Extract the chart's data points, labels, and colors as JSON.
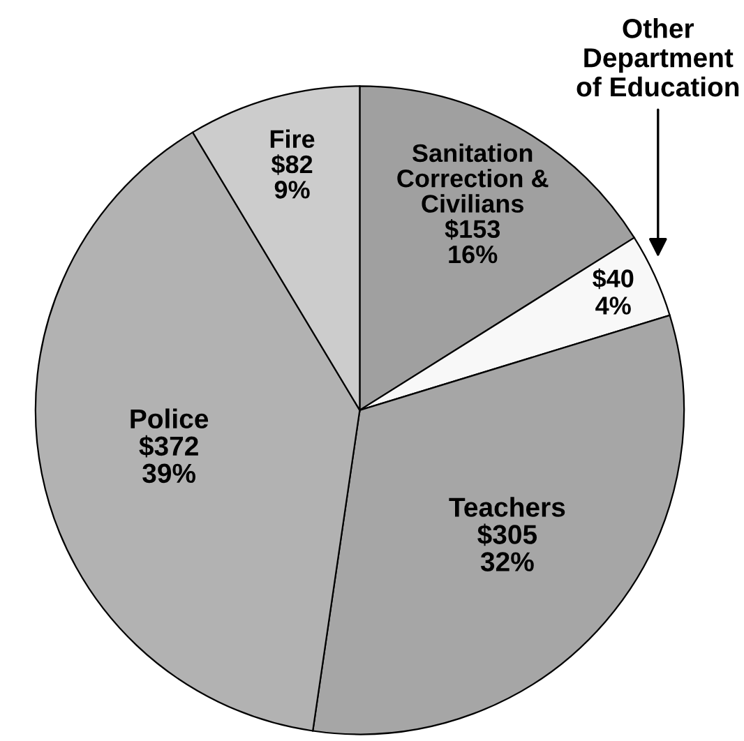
{
  "chart_data": {
    "type": "pie",
    "categories": [
      "Sanitation\nCorrection &\nCivilians",
      "Other\nDepartment\nof Education",
      "Teachers",
      "Police",
      "Fire"
    ],
    "values": [
      153,
      40,
      305,
      372,
      82
    ],
    "colors": [
      "#a0a0a0",
      "#f8f8f8",
      "#a6a6a6",
      "#b2b2b2",
      "#cccccc"
    ],
    "value_labels": [
      "$153\n16%",
      "$40\n4%",
      "$305\n32%",
      "$372\n39%",
      "$82\n9%"
    ]
  }
}
